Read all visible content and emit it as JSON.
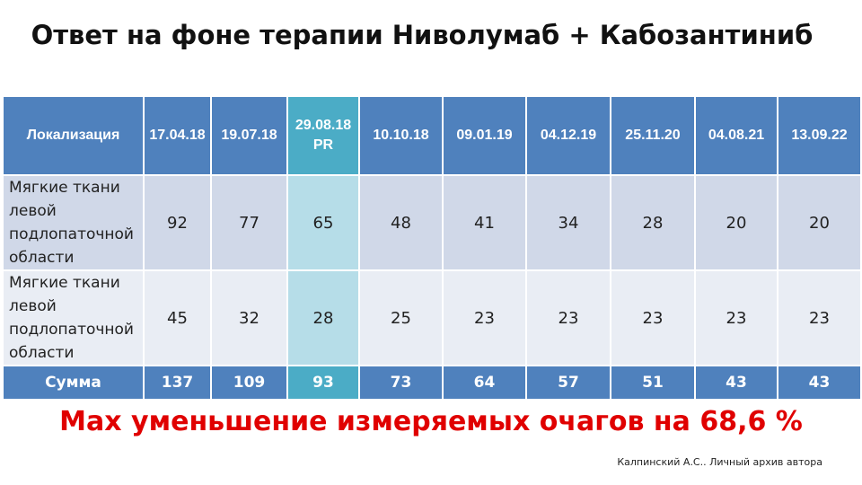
{
  "title": "Ответ на фоне терапии Ниволумаб + Кабозантиниб",
  "table": {
    "header": {
      "label": "Локализация",
      "dates": [
        "17.04.18",
        "19.07.18",
        "29.08.18 PR",
        "10.10.18",
        "09.01.19",
        "04.12.19",
        "25.11.20",
        "04.08.21",
        "13.09.22"
      ]
    },
    "rows": [
      {
        "label": "Мягкие ткани левой подлопаточной области",
        "values": [
          "92",
          "77",
          "65",
          "48",
          "41",
          "34",
          "28",
          "20",
          "20"
        ]
      },
      {
        "label": "Мягкие ткани левой подлопаточной области",
        "values": [
          "45",
          "32",
          "28",
          "25",
          "23",
          "23",
          "23",
          "23",
          "23"
        ]
      }
    ],
    "sum": {
      "label": "Сумма",
      "values": [
        "137",
        "109",
        "93",
        "73",
        "64",
        "57",
        "51",
        "43",
        "43"
      ]
    }
  },
  "footer": "Max уменьшение измеряемых очагов на 68,6 %",
  "credit": "Калпинский А.С.. Личный архив автора",
  "colors": {
    "header": "#4f81bd",
    "highlight": "#4bacc6",
    "row1": "#d0d8e8",
    "row2": "#e9edf4",
    "footer": "#e00000"
  }
}
